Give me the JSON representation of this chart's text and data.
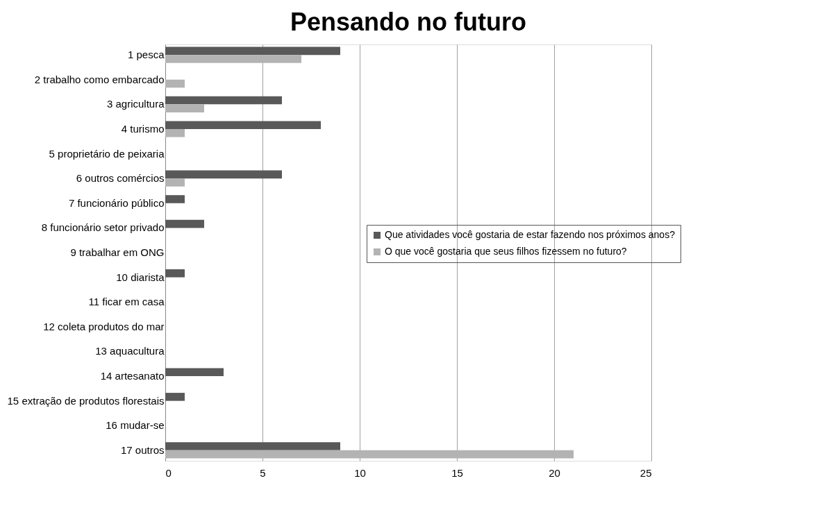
{
  "chart_data": {
    "type": "bar",
    "orientation": "horizontal",
    "title": "Pensando no futuro",
    "categories": [
      "1 pesca",
      "2 trabalho como embarcado",
      "3 agricultura",
      "4 turismo",
      "5 proprietário de peixaria",
      "6 outros comércios",
      "7 funcionário público",
      "8 funcionário setor privado",
      "9 trabalhar em ONG",
      "10 diarista",
      "11 ficar em casa",
      "12 coleta produtos do mar",
      "13 aquacultura",
      "14 artesanato",
      "15 extração de produtos florestais",
      "16 mudar-se",
      "17 outros"
    ],
    "series": [
      {
        "name": "Que atividades você gostaria de estar fazendo nos próximos anos?",
        "color": "#595959",
        "values": [
          9,
          0,
          6,
          8,
          0,
          6,
          1,
          2,
          0,
          1,
          0,
          0,
          0,
          3,
          1,
          0,
          9
        ]
      },
      {
        "name": "O que você gostaria que seus filhos fizessem no futuro?",
        "color": "#b3b3b3",
        "values": [
          7,
          1,
          2,
          1,
          0,
          1,
          0,
          0,
          0,
          0,
          0,
          0,
          0,
          0,
          0,
          0,
          21
        ]
      }
    ],
    "xlim": [
      0,
      25
    ],
    "xticks": [
      0,
      5,
      10,
      15,
      20,
      25
    ],
    "grid": "x",
    "legend": "right"
  }
}
